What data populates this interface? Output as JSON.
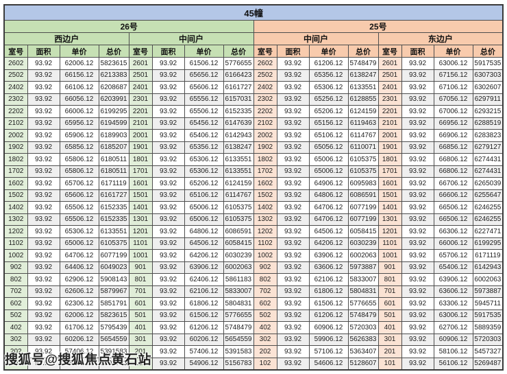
{
  "title": "45幢",
  "watermark": "搜狐号@搜狐焦点黄石站",
  "colors": {
    "title_bar": "#b4c7e7",
    "building_26": "#c6e0b4",
    "building_25": "#f8cbad",
    "room_col_26": "#e2efda",
    "room_col_25": "#fce4d6",
    "stripe": "#efefef"
  },
  "table": {
    "buildings": [
      {
        "label": "26号",
        "units": [
          "西边户",
          "中间户"
        ]
      },
      {
        "label": "25号",
        "units": [
          "中间户",
          "东边户"
        ]
      }
    ],
    "column_headers": [
      "室号",
      "面积",
      "单价",
      "总价"
    ],
    "column_keys": [
      "room",
      "area",
      "unit-price",
      "total-price"
    ],
    "rows": [
      [
        [
          "2602",
          "93.92",
          "62006.12",
          "5823615"
        ],
        [
          "2601",
          "93.92",
          "61506.12",
          "5776655"
        ],
        [
          "2602",
          "93.92",
          "61206.12",
          "5748479"
        ],
        [
          "2601",
          "93.92",
          "63006.12",
          "5917535"
        ]
      ],
      [
        [
          "2502",
          "93.92",
          "66156.12",
          "6213383"
        ],
        [
          "2501",
          "93.92",
          "65656.12",
          "6166423"
        ],
        [
          "2502",
          "93.92",
          "65356.12",
          "6138247"
        ],
        [
          "2501",
          "93.92",
          "67156.12",
          "6307303"
        ]
      ],
      [
        [
          "2402",
          "93.92",
          "66106.12",
          "6208687"
        ],
        [
          "2401",
          "93.92",
          "65606.12",
          "6161727"
        ],
        [
          "2402",
          "93.92",
          "65306.12",
          "6133551"
        ],
        [
          "2401",
          "93.92",
          "67106.12",
          "6302607"
        ]
      ],
      [
        [
          "2302",
          "93.92",
          "66056.12",
          "6203991"
        ],
        [
          "2301",
          "93.92",
          "65556.12",
          "6157031"
        ],
        [
          "2302",
          "93.92",
          "65256.12",
          "6128855"
        ],
        [
          "2301",
          "93.92",
          "67056.12",
          "6297911"
        ]
      ],
      [
        [
          "2202",
          "93.92",
          "66006.12",
          "6199295"
        ],
        [
          "2201",
          "93.92",
          "65506.12",
          "6152335"
        ],
        [
          "2202",
          "93.92",
          "65206.12",
          "6124159"
        ],
        [
          "2201",
          "93.92",
          "67006.12",
          "6293215"
        ]
      ],
      [
        [
          "2102",
          "93.92",
          "65956.12",
          "6194599"
        ],
        [
          "2101",
          "93.92",
          "65456.12",
          "6147639"
        ],
        [
          "2102",
          "93.92",
          "65156.12",
          "6119463"
        ],
        [
          "2101",
          "93.92",
          "66956.12",
          "6288519"
        ]
      ],
      [
        [
          "2002",
          "93.92",
          "65906.12",
          "6189903"
        ],
        [
          "2001",
          "93.92",
          "65406.12",
          "6142943"
        ],
        [
          "2002",
          "93.92",
          "65106.12",
          "6114767"
        ],
        [
          "2001",
          "93.92",
          "66906.12",
          "6283823"
        ]
      ],
      [
        [
          "1902",
          "93.92",
          "65856.12",
          "6185207"
        ],
        [
          "1901",
          "93.92",
          "65356.12",
          "6138247"
        ],
        [
          "1902",
          "93.92",
          "65056.12",
          "6110071"
        ],
        [
          "1901",
          "93.92",
          "66856.12",
          "6279127"
        ]
      ],
      [
        [
          "1802",
          "93.92",
          "65806.12",
          "6180511"
        ],
        [
          "1801",
          "93.92",
          "65306.12",
          "6133551"
        ],
        [
          "1802",
          "93.92",
          "65006.12",
          "6105375"
        ],
        [
          "1801",
          "93.92",
          "66806.12",
          "6274431"
        ]
      ],
      [
        [
          "1702",
          "93.92",
          "65806.12",
          "6180511"
        ],
        [
          "1701",
          "93.92",
          "65306.12",
          "6133551"
        ],
        [
          "1702",
          "93.92",
          "65006.12",
          "6105375"
        ],
        [
          "1701",
          "93.92",
          "66806.12",
          "6274431"
        ]
      ],
      [
        [
          "1602",
          "93.92",
          "65706.12",
          "6171119"
        ],
        [
          "1601",
          "93.92",
          "65206.12",
          "6124159"
        ],
        [
          "1602",
          "93.92",
          "64906.12",
          "6095983"
        ],
        [
          "1601",
          "93.92",
          "66706.12",
          "6265039"
        ]
      ],
      [
        [
          "1502",
          "93.92",
          "65606.12",
          "6161727"
        ],
        [
          "1501",
          "93.92",
          "65106.12",
          "6114767"
        ],
        [
          "1502",
          "93.92",
          "64806.12",
          "6086591"
        ],
        [
          "1501",
          "93.92",
          "66606.12",
          "6255647"
        ]
      ],
      [
        [
          "1402",
          "93.92",
          "65506.12",
          "6152335"
        ],
        [
          "1401",
          "93.92",
          "65006.12",
          "6105375"
        ],
        [
          "1402",
          "93.92",
          "64706.12",
          "6077199"
        ],
        [
          "1401",
          "93.92",
          "66506.12",
          "6246255"
        ]
      ],
      [
        [
          "1302",
          "93.92",
          "65506.12",
          "6152335"
        ],
        [
          "1301",
          "93.92",
          "65006.12",
          "6105375"
        ],
        [
          "1302",
          "93.92",
          "64706.12",
          "6077199"
        ],
        [
          "1301",
          "93.92",
          "66506.12",
          "6246255"
        ]
      ],
      [
        [
          "1202",
          "93.92",
          "65306.12",
          "6133551"
        ],
        [
          "1201",
          "93.92",
          "64806.12",
          "6086591"
        ],
        [
          "1202",
          "93.92",
          "64506.12",
          "6058415"
        ],
        [
          "1201",
          "93.92",
          "66306.12",
          "6227471"
        ]
      ],
      [
        [
          "1102",
          "93.92",
          "65006.12",
          "6105375"
        ],
        [
          "1101",
          "93.92",
          "64506.12",
          "6058415"
        ],
        [
          "1102",
          "93.92",
          "64206.12",
          "6030239"
        ],
        [
          "1101",
          "93.92",
          "66006.12",
          "6199295"
        ]
      ],
      [
        [
          "1002",
          "93.92",
          "64706.12",
          "6077199"
        ],
        [
          "1001",
          "93.92",
          "64206.12",
          "6030239"
        ],
        [
          "1002",
          "93.92",
          "63906.12",
          "6002063"
        ],
        [
          "1001",
          "93.92",
          "65706.12",
          "6171119"
        ]
      ],
      [
        [
          "902",
          "93.92",
          "64406.12",
          "6049023"
        ],
        [
          "901",
          "93.92",
          "63906.12",
          "6002063"
        ],
        [
          "902",
          "93.92",
          "63606.12",
          "5973887"
        ],
        [
          "901",
          "93.92",
          "65406.12",
          "6142943"
        ]
      ],
      [
        [
          "802",
          "93.92",
          "62906.12",
          "5908143"
        ],
        [
          "801",
          "93.92",
          "62406.12",
          "5861183"
        ],
        [
          "802",
          "93.92",
          "62106.12",
          "5833007"
        ],
        [
          "801",
          "93.92",
          "63906.12",
          "6002063"
        ]
      ],
      [
        [
          "702",
          "93.92",
          "62606.12",
          "5879967"
        ],
        [
          "701",
          "93.92",
          "62106.12",
          "5833007"
        ],
        [
          "702",
          "93.92",
          "61806.12",
          "5804831"
        ],
        [
          "701",
          "93.92",
          "63606.12",
          "5973887"
        ]
      ],
      [
        [
          "602",
          "93.92",
          "62306.12",
          "5851791"
        ],
        [
          "601",
          "93.92",
          "61806.12",
          "5804831"
        ],
        [
          "602",
          "93.92",
          "61506.12",
          "5776655"
        ],
        [
          "601",
          "93.92",
          "63306.12",
          "5945711"
        ]
      ],
      [
        [
          "502",
          "93.92",
          "62006.12",
          "5823615"
        ],
        [
          "501",
          "93.92",
          "61506.12",
          "5776655"
        ],
        [
          "502",
          "93.92",
          "61206.12",
          "5748479"
        ],
        [
          "501",
          "93.92",
          "63006.12",
          "5917535"
        ]
      ],
      [
        [
          "402",
          "93.92",
          "61706.12",
          "5795439"
        ],
        [
          "401",
          "93.92",
          "61206.12",
          "5748479"
        ],
        [
          "402",
          "93.92",
          "60906.12",
          "5720303"
        ],
        [
          "401",
          "93.92",
          "62706.12",
          "5889359"
        ]
      ],
      [
        [
          "302",
          "93.92",
          "60206.12",
          "5654559"
        ],
        [
          "301",
          "93.92",
          "60206.12",
          "5654559"
        ],
        [
          "302",
          "93.92",
          "59906.12",
          "5626383"
        ],
        [
          "301",
          "93.92",
          "60906.12",
          "5720303"
        ]
      ],
      [
        [
          "202",
          "93.92",
          "57406.12",
          "5391583"
        ],
        [
          "201",
          "93.92",
          "57406.12",
          "5391583"
        ],
        [
          "202",
          "93.92",
          "57106.12",
          "5363407"
        ],
        [
          "201",
          "93.92",
          "58106.12",
          "5457327"
        ]
      ],
      [
        [
          "102",
          "93.92",
          "55406.12",
          "5203743"
        ],
        [
          "101",
          "93.92",
          "54906.12",
          "5156783"
        ],
        [
          "102",
          "93.92",
          "54606.12",
          "5128607"
        ],
        [
          "101",
          "93.92",
          "56106.12",
          "5269487"
        ]
      ]
    ]
  }
}
